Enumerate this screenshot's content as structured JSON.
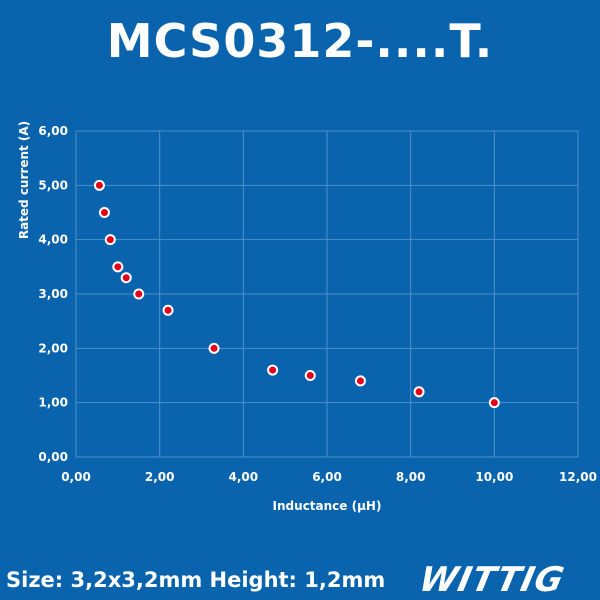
{
  "header": {
    "title": "MCS0312-....T."
  },
  "footer": {
    "spec_text": "Size: 3,2x3,2mm Height: 1,2mm"
  },
  "brand": {
    "logo_text": "WITTIG"
  },
  "chart_data": {
    "type": "scatter",
    "title": "MCS0312-....T.",
    "xlabel": "Inductance (µH)",
    "ylabel": "Rated current (A)",
    "xlim": [
      0,
      12
    ],
    "ylim": [
      0,
      6
    ],
    "x_ticks": [
      "0,00",
      "2,00",
      "4,00",
      "6,00",
      "8,00",
      "10,00",
      "12,00"
    ],
    "y_ticks": [
      "0,00",
      "1,00",
      "2,00",
      "3,00",
      "4,00",
      "5,00",
      "6,00"
    ],
    "grid": true,
    "points": [
      {
        "x": 0.56,
        "y": 5.0
      },
      {
        "x": 0.68,
        "y": 4.5
      },
      {
        "x": 0.82,
        "y": 4.0
      },
      {
        "x": 1.0,
        "y": 3.5
      },
      {
        "x": 1.2,
        "y": 3.3
      },
      {
        "x": 1.5,
        "y": 3.0
      },
      {
        "x": 2.2,
        "y": 2.7
      },
      {
        "x": 3.3,
        "y": 2.0
      },
      {
        "x": 4.7,
        "y": 1.6
      },
      {
        "x": 5.6,
        "y": 1.5
      },
      {
        "x": 6.8,
        "y": 1.4
      },
      {
        "x": 8.2,
        "y": 1.2
      },
      {
        "x": 10.0,
        "y": 1.0
      }
    ],
    "colors": {
      "marker_fill": "#e2001a",
      "marker_stroke": "#ffffff",
      "grid": "#4f91c9"
    }
  }
}
